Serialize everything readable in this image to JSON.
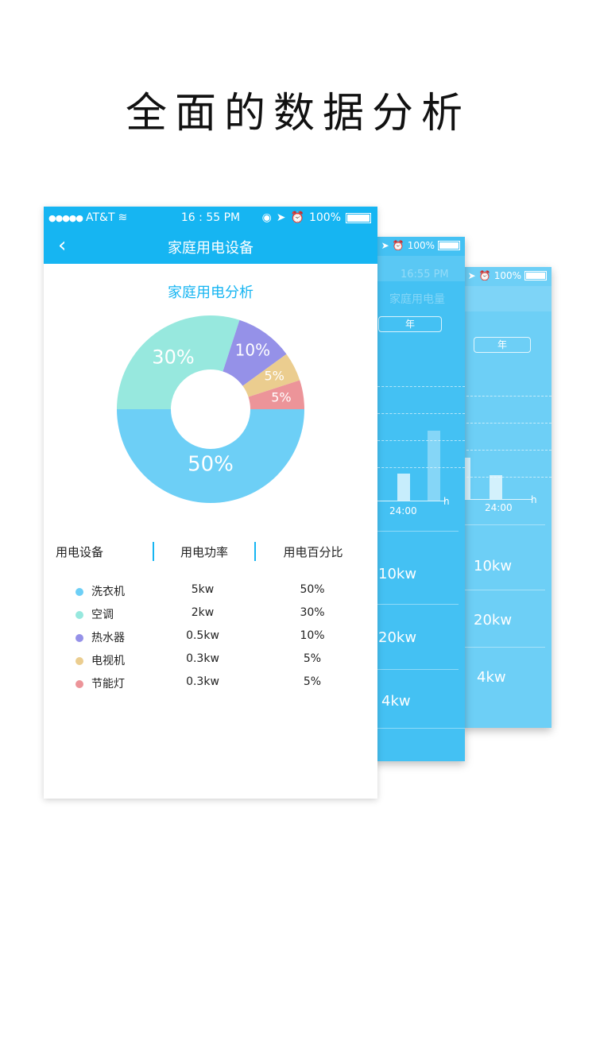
{
  "headline": "全面的数据分析",
  "back_card_far": {
    "status": {
      "battery": "100%"
    },
    "tab": "年",
    "axis_x": "24:00",
    "axis_unit": "h",
    "values": [
      "10kw",
      "20kw",
      "4kw"
    ]
  },
  "back_card_mid": {
    "status": {
      "time": "16:55 PM",
      "battery": "100%"
    },
    "title": "家庭用电量",
    "tab": "年",
    "axis_x": "24:00",
    "axis_unit": "h",
    "values": [
      "10kw",
      "20kw",
      "4kw"
    ]
  },
  "front": {
    "status": {
      "carrier": "AT&T",
      "time": "16 : 55 PM",
      "battery": "100%"
    },
    "nav_title": "家庭用电设备",
    "section_title": "家庭用电分析",
    "headers": {
      "device": "用电设备",
      "power": "用电功率",
      "percent": "用电百分比"
    },
    "rows": [
      {
        "name": "洗衣机",
        "power": "5kw",
        "percent": "50%",
        "color": "#6dcff6"
      },
      {
        "name": "空调",
        "power": "2kw",
        "percent": "30%",
        "color": "#97e8de"
      },
      {
        "name": "热水器",
        "power": "0.5kw",
        "percent": "10%",
        "color": "#9591e8"
      },
      {
        "name": "电视机",
        "power": "0.3kw",
        "percent": "5%",
        "color": "#ebcd8f"
      },
      {
        "name": "节能灯",
        "power": "0.3kw",
        "percent": "5%",
        "color": "#ec9499"
      }
    ]
  },
  "chart_data": {
    "type": "pie",
    "categories": [
      "洗衣机",
      "空调",
      "热水器",
      "电视机",
      "节能灯"
    ],
    "values": [
      50,
      30,
      10,
      5,
      5
    ],
    "labels": [
      "50%",
      "30%",
      "10%",
      "5%",
      "5%"
    ],
    "colors": [
      "#6dcff6",
      "#97e8de",
      "#9591e8",
      "#ebcd8f",
      "#ec9499"
    ],
    "title": "家庭用电分析"
  }
}
